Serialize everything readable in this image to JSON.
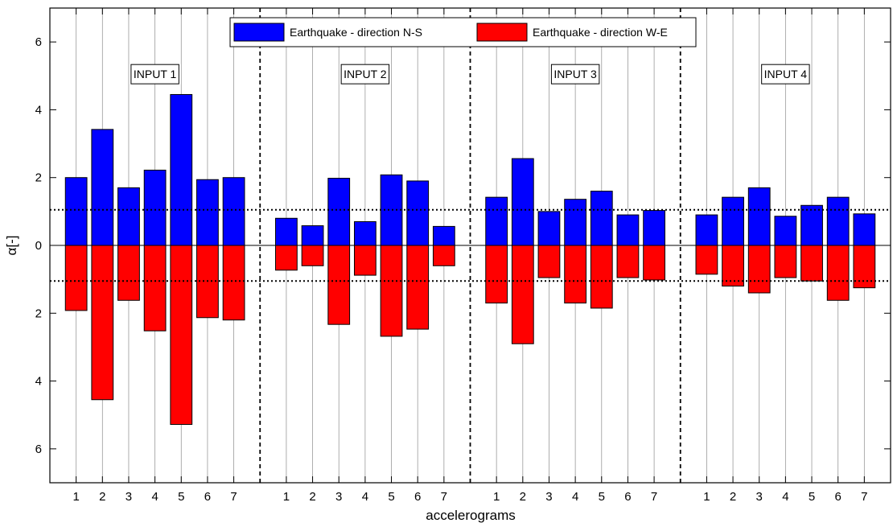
{
  "chart_data": {
    "type": "bar",
    "xlabel": "accelerograms",
    "ylabel": "α[-]",
    "ylim": [
      -7,
      7
    ],
    "yticks": [
      -6,
      -4,
      -2,
      0,
      2,
      4,
      6
    ],
    "ytick_labels": [
      "6",
      "4",
      "2",
      "0",
      "2",
      "4",
      "6"
    ],
    "grid": "vertical",
    "legend_position": "top-center",
    "threshold_lines": [
      1.05,
      -1.05
    ],
    "panels": [
      {
        "label": "INPUT 1",
        "categories": [
          "1",
          "2",
          "3",
          "4",
          "5",
          "6",
          "7"
        ],
        "ns": [
          2.0,
          3.42,
          1.7,
          2.22,
          4.45,
          1.94,
          2.0
        ],
        "we": [
          -1.92,
          -4.55,
          -1.62,
          -2.52,
          -5.28,
          -2.13,
          -2.2
        ]
      },
      {
        "label": "INPUT 2",
        "categories": [
          "1",
          "2",
          "3",
          "4",
          "5",
          "6",
          "7"
        ],
        "ns": [
          0.8,
          0.58,
          1.98,
          0.7,
          2.08,
          1.9,
          0.56
        ],
        "we": [
          -0.73,
          -0.6,
          -2.33,
          -0.88,
          -2.68,
          -2.47,
          -0.6
        ]
      },
      {
        "label": "INPUT 3",
        "categories": [
          "1",
          "2",
          "3",
          "4",
          "5",
          "6",
          "7"
        ],
        "ns": [
          1.42,
          2.56,
          1.0,
          1.36,
          1.6,
          0.9,
          1.03
        ],
        "we": [
          -1.7,
          -2.9,
          -0.95,
          -1.7,
          -1.85,
          -0.95,
          -1.02
        ]
      },
      {
        "label": "INPUT 4",
        "categories": [
          "1",
          "2",
          "3",
          "4",
          "5",
          "6",
          "7"
        ],
        "ns": [
          0.9,
          1.42,
          1.7,
          0.86,
          1.18,
          1.42,
          0.93
        ],
        "we": [
          -0.85,
          -1.2,
          -1.4,
          -0.95,
          -1.05,
          -1.62,
          -1.25
        ]
      }
    ],
    "series": [
      {
        "name": "Earthquake - direction N-S",
        "color": "#0000ff"
      },
      {
        "name": "Earthquake - direction W-E",
        "color": "#ff0000"
      }
    ]
  }
}
